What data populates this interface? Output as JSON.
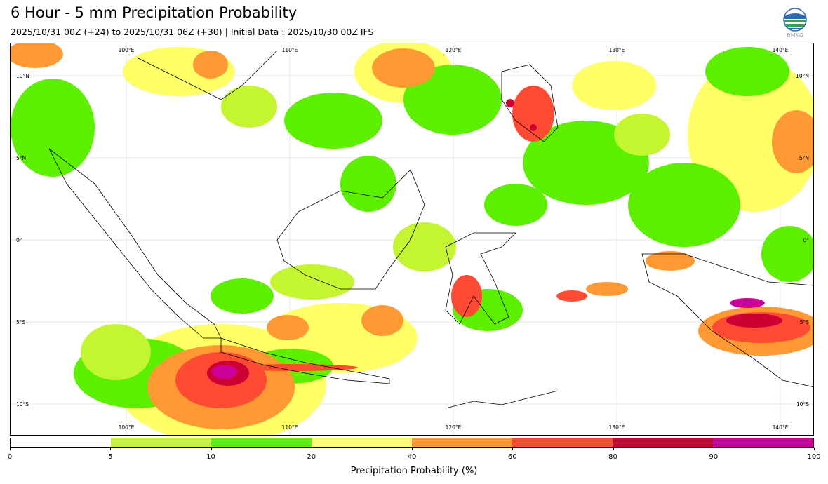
{
  "header": {
    "title": "6 Hour - 5 mm Precipitation Probability",
    "subtitle": "2025/10/31 00Z (+24) to 2025/10/31 06Z (+30) | Initial Data : 2025/10/30 00Z IFS"
  },
  "logo": {
    "text": "BMKG",
    "icon": "bmkg-logo-icon"
  },
  "map": {
    "lon_labels": [
      "100°E",
      "110°E",
      "120°E",
      "130°E",
      "140°E"
    ],
    "lat_labels": [
      "10°N",
      "5°N",
      "0°",
      "5°S",
      "10°S"
    ]
  },
  "colorbar": {
    "ticks": [
      "0",
      "5",
      "10",
      "20",
      "40",
      "60",
      "80",
      "90",
      "100"
    ],
    "colors": [
      "#ffffff",
      "#c4f531",
      "#5cf000",
      "#ffff66",
      "#ff9933",
      "#ff4b33",
      "#cc0033",
      "#cc0099"
    ],
    "label": "Precipitation Probability (%)"
  }
}
